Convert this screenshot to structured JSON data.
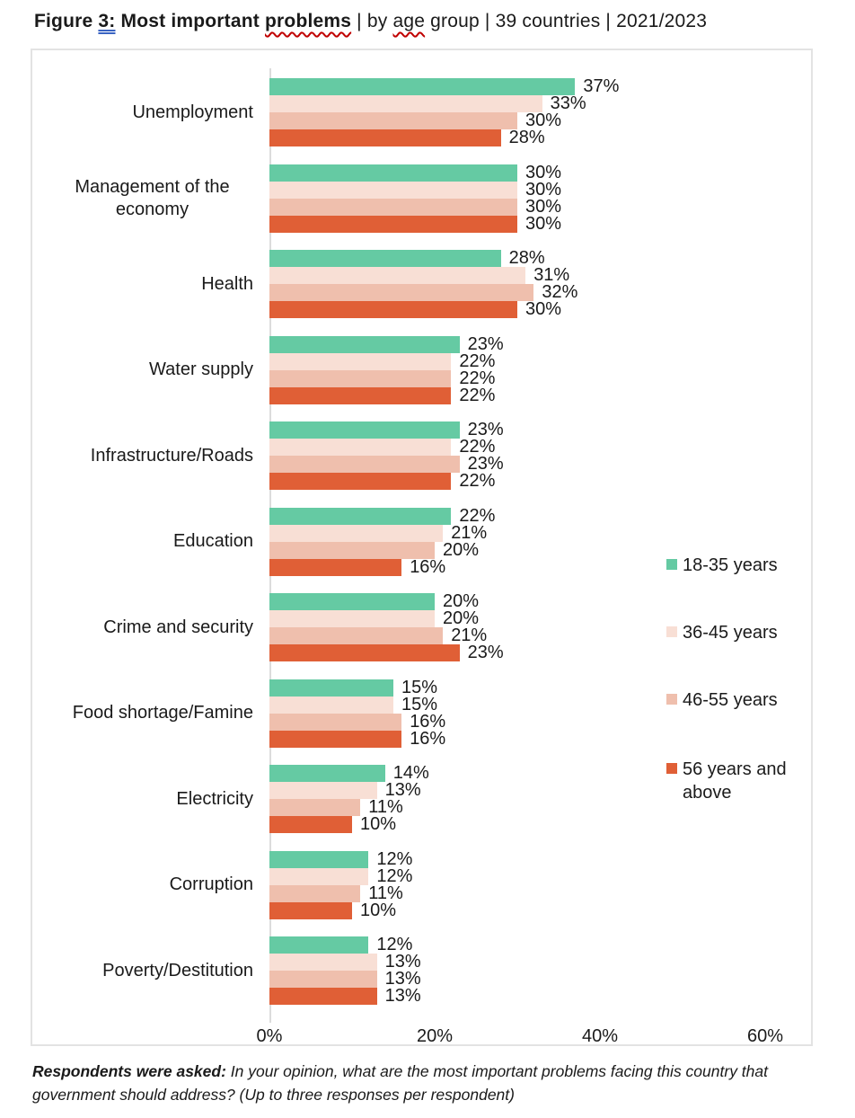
{
  "document": {
    "title_segments": [
      {
        "text": "Figure ",
        "bold": true,
        "underline": "none"
      },
      {
        "text": "3:",
        "bold": true,
        "underline": "grammar"
      },
      {
        "text": " Most important ",
        "bold": true,
        "underline": "none"
      },
      {
        "text": "problems",
        "bold": true,
        "underline": "spelling"
      },
      {
        "text": " | by ",
        "bold": false,
        "underline": "none"
      },
      {
        "text": "age",
        "bold": false,
        "underline": "spelling"
      },
      {
        "text": " group | 39 countries | 2021/2023",
        "bold": false,
        "underline": "none"
      }
    ],
    "footnote": {
      "lead": "Respondents were asked:",
      "text": " In your opinion, what are the most important problems facing this country that government should address? (Up to three responses per respondent)"
    }
  },
  "chart_data": {
    "type": "bar",
    "orientation": "horizontal",
    "title": "Figure 3: Most important problems | by age group | 39 countries | 2021/2023",
    "categories": [
      "Unemployment",
      "Management of the economy",
      "Health",
      "Water supply",
      "Infrastructure/Roads",
      "Education",
      "Crime and security",
      "Food shortage/Famine",
      "Electricity",
      "Corruption",
      "Poverty/Destitution"
    ],
    "series": [
      {
        "name": "18-35 years",
        "color": "#65CAA3",
        "values": [
          37,
          30,
          28,
          23,
          23,
          22,
          20,
          15,
          14,
          12,
          12
        ]
      },
      {
        "name": "36-45 years",
        "color": "#F8DFD5",
        "values": [
          33,
          30,
          31,
          22,
          22,
          21,
          20,
          15,
          13,
          12,
          13
        ]
      },
      {
        "name": "46-55 years",
        "color": "#EFBFAD",
        "values": [
          30,
          30,
          32,
          22,
          23,
          20,
          21,
          16,
          11,
          11,
          13
        ]
      },
      {
        "name": "56 years and above",
        "color": "#E05F36",
        "values": [
          28,
          30,
          30,
          22,
          22,
          16,
          23,
          16,
          10,
          10,
          13
        ]
      }
    ],
    "value_suffix": "%",
    "data_labels": true,
    "x_ticks": [
      {
        "label": "0%",
        "value": 0
      },
      {
        "label": "20%",
        "value": 20
      },
      {
        "label": "40%",
        "value": 40
      },
      {
        "label": "60%",
        "value": 60
      }
    ],
    "xlim": [
      0,
      66
    ],
    "grid": false,
    "legend_position": "right-middle"
  },
  "colors": {
    "frame_border": "#E3E3E3",
    "axis_line": "#DCDCDC",
    "text": "#1a1a1a",
    "spellcheck_red": "#C00000",
    "grammar_blue": "#3A63C2"
  }
}
